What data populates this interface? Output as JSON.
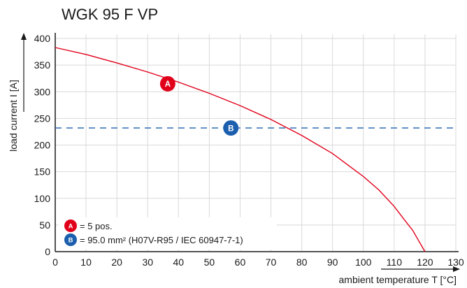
{
  "chart_data": {
    "type": "line",
    "title": "WGK 95 F VP",
    "xlabel": "ambient temperature T [°C]",
    "ylabel": "load current I [A]",
    "xlim": [
      0,
      130
    ],
    "ylim": [
      0,
      400
    ],
    "xticks": [
      0,
      10,
      20,
      30,
      40,
      50,
      60,
      70,
      80,
      90,
      100,
      110,
      120,
      130
    ],
    "yticks": [
      0,
      50,
      100,
      150,
      200,
      250,
      300,
      350,
      400
    ],
    "grid": true,
    "series": [
      {
        "marker_label": "A",
        "color": "#e1001a",
        "style": "solid",
        "x": [
          0,
          10,
          20,
          30,
          40,
          50,
          60,
          70,
          80,
          90,
          100,
          105,
          110,
          113,
          116,
          118,
          119,
          120
        ],
        "y": [
          383,
          370,
          354,
          337,
          318,
          297,
          274,
          248,
          218,
          184,
          141,
          116,
          85,
          62,
          40,
          20,
          10,
          0
        ],
        "badge_x": 36.5,
        "badge_y": 315
      },
      {
        "marker_label": "B",
        "color": "#1b5fae",
        "style": "dashed",
        "x": [
          0,
          130
        ],
        "y": [
          232,
          232
        ],
        "badge_x": 57,
        "badge_y": 232
      }
    ],
    "legend": {
      "placement": "bottom-left",
      "items": [
        {
          "badge": "A",
          "text": "= 5 pos."
        },
        {
          "badge": "B",
          "text": "= 95.0 mm² (H07V-R95 / IEC 60947-7-1)"
        }
      ]
    }
  }
}
